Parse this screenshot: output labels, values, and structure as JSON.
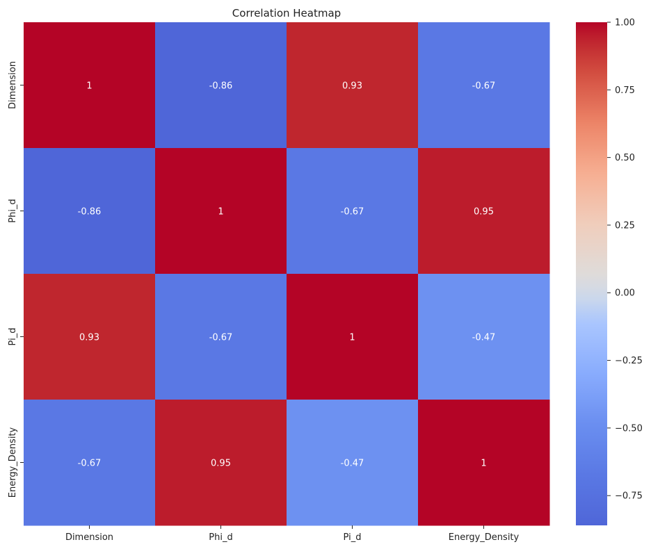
{
  "chart_data": {
    "type": "heatmap",
    "title": "Correlation Heatmap",
    "x_labels": [
      "Dimension",
      "Phi_d",
      "Pi_d",
      "Energy_Density"
    ],
    "y_labels": [
      "Dimension",
      "Phi_d",
      "Pi_d",
      "Energy_Density"
    ],
    "values": [
      [
        1,
        -0.86,
        0.93,
        -0.67
      ],
      [
        -0.86,
        1,
        -0.67,
        0.95
      ],
      [
        0.93,
        -0.67,
        1,
        -0.47
      ],
      [
        -0.67,
        0.95,
        -0.47,
        1
      ]
    ],
    "annotations": [
      [
        "1",
        "-0.86",
        "0.93",
        "-0.67"
      ],
      [
        "-0.86",
        "1",
        "-0.67",
        "0.95"
      ],
      [
        "0.93",
        "-0.67",
        "1",
        "-0.47"
      ],
      [
        "-0.67",
        "0.95",
        "-0.47",
        "1"
      ]
    ],
    "colormap": "coolwarm",
    "vmin": -0.86,
    "vmax": 1.0,
    "colorbar_ticks": [
      1.0,
      0.75,
      0.5,
      0.25,
      0.0,
      -0.25,
      -0.5,
      -0.75
    ],
    "colorbar_tick_labels": [
      "1.00",
      "0.75",
      "0.50",
      "0.25",
      "0.00",
      "−0.25",
      "−0.50",
      "−0.75"
    ]
  }
}
